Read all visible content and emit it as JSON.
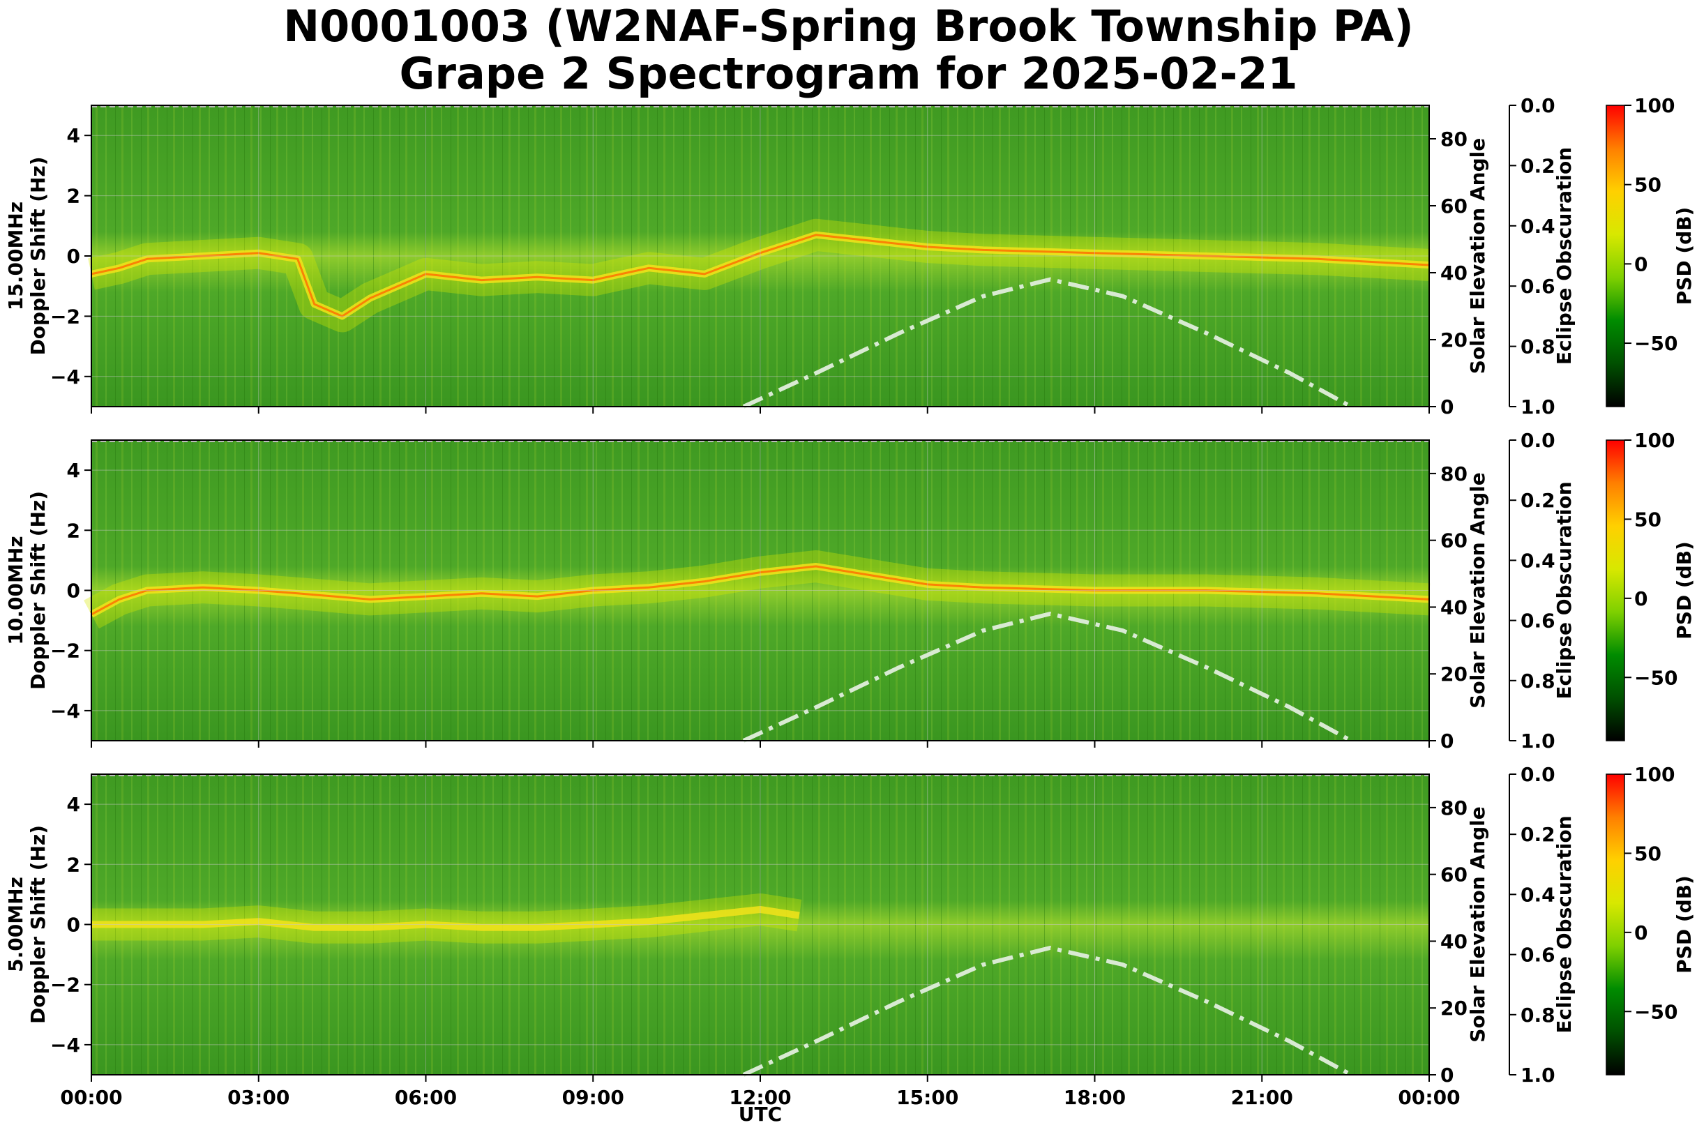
{
  "figure": {
    "title_line1": "N0001003 (W2NAF-Spring Brook Township PA)",
    "title_line2": "Grape 2 Spectrogram for 2025-02-21"
  },
  "colors": {
    "psd_colormap": [
      "#000000",
      "#005000",
      "#008c00",
      "#7fd000",
      "#d8e800",
      "#ffd000",
      "#ff7f00",
      "#ff0000"
    ],
    "solar_curve": "#d9ead3",
    "grid": "#c8c8c8"
  },
  "chart_data": [
    {
      "type": "heatmap",
      "name": "15 MHz spectrogram",
      "ylabel_line1": "15.00MHz",
      "ylabel_line2": "Doppler Shift (Hz)",
      "y2label": "Solar Elevation Angle",
      "y3label": "Eclipse Obscuration",
      "cbar_label": "PSD (dB)",
      "xlabel": "",
      "x_tick_labels": [
        "00:00",
        "03:00",
        "06:00",
        "09:00",
        "12:00",
        "15:00",
        "18:00",
        "21:00",
        "00:00"
      ],
      "ylim": [
        -5,
        5
      ],
      "y_ticks": [
        4,
        2,
        0,
        -2,
        -4
      ],
      "y_tick_labels": [
        "4",
        "2",
        "0",
        "−2",
        "−4"
      ],
      "y2lim": [
        0,
        90
      ],
      "y2_ticks": [
        80,
        60,
        40,
        20,
        0
      ],
      "y3lim": [
        0,
        1
      ],
      "y3_ticks": [
        0.0,
        0.2,
        0.4,
        0.6,
        0.8,
        1.0
      ],
      "y3_tick_labels": [
        "0.0",
        "0.2",
        "0.4",
        "0.6",
        "0.8",
        "1.0"
      ],
      "cbar_range": [
        -90,
        100
      ],
      "cbar_ticks": [
        100,
        50,
        0,
        -50
      ],
      "cbar_tick_labels": [
        "100",
        "50",
        "0",
        "−50"
      ],
      "doppler_trace_hz": [
        [
          0.0,
          -0.6
        ],
        [
          0.5,
          -0.4
        ],
        [
          1.0,
          -0.1
        ],
        [
          2.0,
          0.0
        ],
        [
          3.0,
          0.1
        ],
        [
          3.7,
          -0.1
        ],
        [
          4.0,
          -1.6
        ],
        [
          4.5,
          -2.0
        ],
        [
          5.0,
          -1.4
        ],
        [
          6.0,
          -0.6
        ],
        [
          7.0,
          -0.8
        ],
        [
          8.0,
          -0.7
        ],
        [
          9.0,
          -0.8
        ],
        [
          10.0,
          -0.4
        ],
        [
          11.0,
          -0.6
        ],
        [
          12.0,
          0.1
        ],
        [
          13.0,
          0.7
        ],
        [
          14.0,
          0.5
        ],
        [
          15.0,
          0.3
        ],
        [
          16.0,
          0.2
        ],
        [
          18.0,
          0.1
        ],
        [
          20.0,
          0.0
        ],
        [
          22.0,
          -0.1
        ],
        [
          24.0,
          -0.3
        ]
      ],
      "solar_elevation_deg": [
        [
          11.7,
          0
        ],
        [
          13.0,
          10
        ],
        [
          14.5,
          22
        ],
        [
          16.0,
          33
        ],
        [
          17.2,
          38
        ],
        [
          18.5,
          33
        ],
        [
          20.0,
          22
        ],
        [
          21.5,
          10
        ],
        [
          22.6,
          0
        ]
      ]
    },
    {
      "type": "heatmap",
      "name": "10 MHz spectrogram",
      "ylabel_line1": "10.00MHz",
      "ylabel_line2": "Doppler Shift (Hz)",
      "y2label": "Solar Elevation Angle",
      "y3label": "Eclipse Obscuration",
      "cbar_label": "PSD (dB)",
      "xlabel": "",
      "x_tick_labels": [
        "00:00",
        "03:00",
        "06:00",
        "09:00",
        "12:00",
        "15:00",
        "18:00",
        "21:00",
        "00:00"
      ],
      "ylim": [
        -5,
        5
      ],
      "y_ticks": [
        4,
        2,
        0,
        -2,
        -4
      ],
      "y_tick_labels": [
        "4",
        "2",
        "0",
        "−2",
        "−4"
      ],
      "y2lim": [
        0,
        90
      ],
      "y2_ticks": [
        80,
        60,
        40,
        20,
        0
      ],
      "y3lim": [
        0,
        1
      ],
      "y3_ticks": [
        0.0,
        0.2,
        0.4,
        0.6,
        0.8,
        1.0
      ],
      "y3_tick_labels": [
        "0.0",
        "0.2",
        "0.4",
        "0.6",
        "0.8",
        "1.0"
      ],
      "cbar_range": [
        -90,
        100
      ],
      "cbar_ticks": [
        100,
        50,
        0,
        -50
      ],
      "cbar_tick_labels": [
        "100",
        "50",
        "0",
        "−50"
      ],
      "doppler_trace_hz": [
        [
          0.0,
          -0.8
        ],
        [
          0.5,
          -0.3
        ],
        [
          1.0,
          0.0
        ],
        [
          2.0,
          0.1
        ],
        [
          3.0,
          0.0
        ],
        [
          3.7,
          -0.1
        ],
        [
          5.0,
          -0.3
        ],
        [
          6.0,
          -0.2
        ],
        [
          7.0,
          -0.1
        ],
        [
          8.0,
          -0.2
        ],
        [
          9.0,
          0.0
        ],
        [
          10.0,
          0.1
        ],
        [
          11.0,
          0.3
        ],
        [
          12.0,
          0.6
        ],
        [
          13.0,
          0.8
        ],
        [
          14.0,
          0.5
        ],
        [
          15.0,
          0.2
        ],
        [
          16.0,
          0.1
        ],
        [
          18.0,
          0.0
        ],
        [
          20.0,
          0.0
        ],
        [
          22.0,
          -0.1
        ],
        [
          24.0,
          -0.3
        ]
      ],
      "solar_elevation_deg": [
        [
          11.7,
          0
        ],
        [
          13.0,
          10
        ],
        [
          14.5,
          22
        ],
        [
          16.0,
          33
        ],
        [
          17.2,
          38
        ],
        [
          18.5,
          33
        ],
        [
          20.0,
          22
        ],
        [
          21.5,
          10
        ],
        [
          22.6,
          0
        ]
      ]
    },
    {
      "type": "heatmap",
      "name": "5 MHz spectrogram",
      "ylabel_line1": "5.00MHz",
      "ylabel_line2": "Doppler Shift (Hz)",
      "y2label": "Solar Elevation Angle",
      "y3label": "Eclipse Obscuration",
      "cbar_label": "PSD (dB)",
      "xlabel": "UTC",
      "x_tick_labels": [
        "00:00",
        "03:00",
        "06:00",
        "09:00",
        "12:00",
        "15:00",
        "18:00",
        "21:00",
        "00:00"
      ],
      "ylim": [
        -5,
        5
      ],
      "y_ticks": [
        4,
        2,
        0,
        -2,
        -4
      ],
      "y_tick_labels": [
        "4",
        "2",
        "0",
        "−2",
        "−4"
      ],
      "y2lim": [
        0,
        90
      ],
      "y2_ticks": [
        80,
        60,
        40,
        20,
        0
      ],
      "y3lim": [
        0,
        1
      ],
      "y3_ticks": [
        0.0,
        0.2,
        0.4,
        0.6,
        0.8,
        1.0
      ],
      "y3_tick_labels": [
        "0.0",
        "0.2",
        "0.4",
        "0.6",
        "0.8",
        "1.0"
      ],
      "cbar_range": [
        -90,
        100
      ],
      "cbar_ticks": [
        100,
        50,
        0,
        -50
      ],
      "cbar_tick_labels": [
        "100",
        "50",
        "0",
        "−50"
      ],
      "doppler_trace_hz": [
        [
          0.0,
          0.0
        ],
        [
          1.0,
          0.0
        ],
        [
          2.0,
          0.0
        ],
        [
          3.0,
          0.1
        ],
        [
          4.0,
          -0.1
        ],
        [
          5.0,
          -0.1
        ],
        [
          6.0,
          0.0
        ],
        [
          7.0,
          -0.1
        ],
        [
          8.0,
          -0.1
        ],
        [
          9.0,
          0.0
        ],
        [
          10.0,
          0.1
        ],
        [
          11.0,
          0.3
        ],
        [
          12.0,
          0.5
        ],
        [
          12.7,
          0.3
        ]
      ],
      "solar_elevation_deg": [
        [
          11.7,
          0
        ],
        [
          13.0,
          10
        ],
        [
          14.5,
          22
        ],
        [
          16.0,
          33
        ],
        [
          17.2,
          38
        ],
        [
          18.5,
          33
        ],
        [
          20.0,
          22
        ],
        [
          21.5,
          10
        ],
        [
          22.6,
          0
        ]
      ]
    }
  ]
}
